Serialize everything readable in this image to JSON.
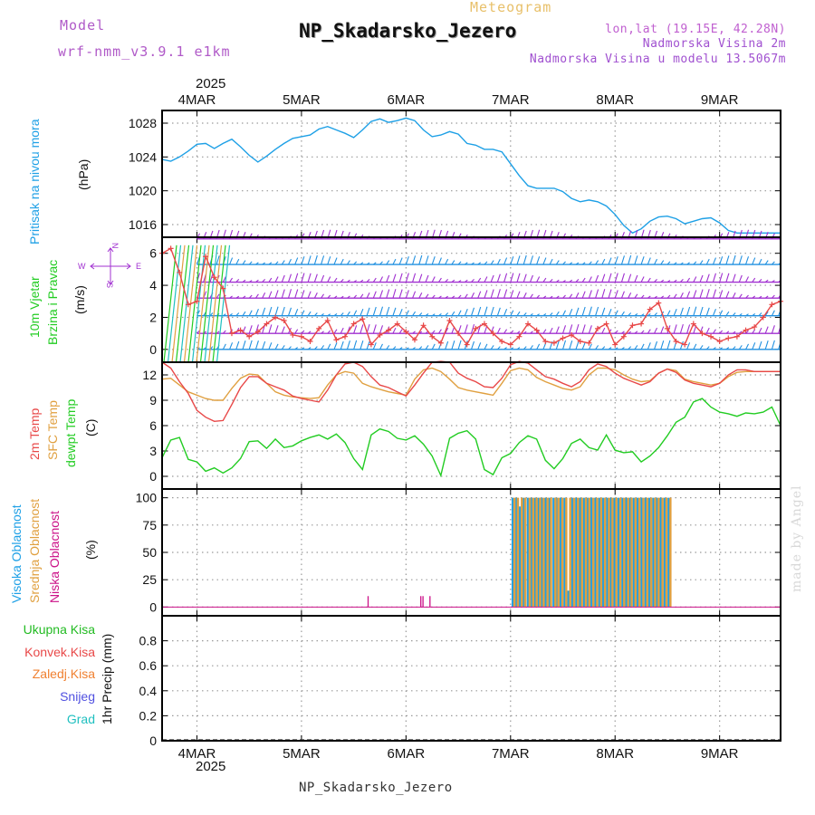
{
  "header": {
    "model_label": "Model",
    "model_name": "wrf-nmm_v3.9.1 e1km",
    "meteogram_label": "Meteogram",
    "location_title": "NP_Skadarsko_Jezero",
    "lonlat": "lon,lat (19.15E, 42.28N)",
    "altitude": "Nadmorska Visina 2m",
    "model_altitude": "Nadmorska Visina u modelu 13.5067m",
    "year_top": "2025"
  },
  "footer": {
    "location": "NP_Skadarsko_Jezero",
    "year_bottom": "2025",
    "credit": "made by Angel"
  },
  "colors": {
    "pressure": "#1ea0e6",
    "temp2m": "#e84848",
    "sfc_temp": "#e0a040",
    "dewpt": "#22cc22",
    "wind_speed": "#e84848",
    "wind_dir": "#111111",
    "high_cloud": "#1ea0e6",
    "mid_cloud": "#e0a040",
    "low_cloud": "#cc1188",
    "total_precip": "#22bb22",
    "convective": "#e84848",
    "frozen": "#f08030",
    "snow": "#5050e0",
    "graupel": "#20c0c0",
    "wind_barb_upper": "#a030d0",
    "wind_barb_lower": "#2090e0"
  },
  "panel_labels": {
    "pressure": {
      "name": "Pritisak na nivou mora",
      "unit": "(hPa)"
    },
    "wind": {
      "name": "10m Vjetar",
      "name2": "Brzina i Pravac",
      "unit": "(m/s)"
    },
    "compass": {
      "n": "N",
      "s": "S",
      "e": "E",
      "w": "W"
    },
    "temp": {
      "t2m": "2m Temp",
      "sfc": "SFC Temp",
      "dew": "dewpt Temp",
      "unit": "(C)"
    },
    "cloud": {
      "high": "Visoka Oblacnost",
      "mid": "Srednja Oblacnost",
      "low": "Niska Oblacnost",
      "unit": "(%)"
    },
    "precip": {
      "total": "Ukupna Kisa",
      "conv": "Konvek.Kisa",
      "frozen": "Zaledj.Kisa",
      "snow": "Snijeg",
      "graupel": "Grad",
      "unit": "1hr Precip (mm)"
    }
  },
  "chart_data": [
    {
      "type": "line",
      "id": "pressure",
      "x_unit": "hours from 2025-03-04 00:00",
      "xlim": [
        -8,
        134
      ],
      "x_tick_labels": [
        "4MAR",
        "5MAR",
        "6MAR",
        "7MAR",
        "8MAR",
        "9MAR"
      ],
      "ylabel": "(hPa)",
      "ylim": [
        1014.5,
        1029.5
      ],
      "yticks": [
        1016,
        1020,
        1024,
        1028
      ],
      "grid": true,
      "series": [
        {
          "name": "Pritisak na nivou mora",
          "x": [
            -8,
            -6,
            -4,
            -2,
            0,
            2,
            4,
            6,
            8,
            10,
            12,
            14,
            16,
            18,
            20,
            22,
            24,
            26,
            28,
            30,
            32,
            34,
            36,
            38,
            40,
            42,
            44,
            46,
            48,
            50,
            52,
            54,
            56,
            58,
            60,
            62,
            64,
            66,
            68,
            70,
            72,
            74,
            76,
            78,
            80,
            82,
            84,
            86,
            88,
            90,
            92,
            94,
            96,
            98,
            100,
            102,
            104,
            106,
            108,
            110,
            112,
            114,
            116,
            118,
            120,
            122,
            124,
            126,
            128,
            130,
            132,
            134
          ],
          "values": [
            1023.7,
            1023.5,
            1024.0,
            1024.7,
            1025.5,
            1025.6,
            1025.0,
            1025.6,
            1026.1,
            1025.2,
            1024.2,
            1023.4,
            1024.1,
            1024.9,
            1025.6,
            1026.2,
            1026.4,
            1026.6,
            1027.3,
            1027.6,
            1027.2,
            1026.8,
            1026.3,
            1027.2,
            1028.2,
            1028.5,
            1028.1,
            1028.3,
            1028.6,
            1028.3,
            1027.2,
            1026.4,
            1026.6,
            1027.0,
            1026.7,
            1025.6,
            1025.4,
            1024.9,
            1024.9,
            1024.6,
            1023.2,
            1021.8,
            1020.6,
            1020.3,
            1020.3,
            1020.3,
            1019.9,
            1019.1,
            1018.7,
            1018.9,
            1018.7,
            1018.2,
            1017.2,
            1015.9,
            1015.0,
            1015.5,
            1016.4,
            1016.9,
            1017.0,
            1016.7,
            1016.1,
            1016.4,
            1016.7,
            1016.8,
            1016.2,
            1015.3,
            1015.0,
            1015.0,
            1015.0,
            1015.0,
            1015.0,
            1015.0
          ]
        }
      ]
    },
    {
      "type": "line",
      "id": "wind",
      "ylabel": "(m/s)",
      "ylim": [
        -0.8,
        7.0
      ],
      "yticks": [
        0,
        2,
        4,
        6
      ],
      "grid": true,
      "series": [
        {
          "name": "10m wind speed",
          "x": [
            -8,
            -6,
            -4,
            -2,
            0,
            2,
            4,
            6,
            8,
            10,
            12,
            14,
            16,
            18,
            20,
            22,
            24,
            26,
            28,
            30,
            32,
            34,
            36,
            38,
            40,
            42,
            44,
            46,
            48,
            50,
            52,
            54,
            56,
            58,
            60,
            62,
            64,
            66,
            68,
            70,
            72,
            74,
            76,
            78,
            80,
            82,
            84,
            86,
            88,
            90,
            92,
            94,
            96,
            98,
            100,
            102,
            104,
            106,
            108,
            110,
            112,
            114,
            116,
            118,
            120,
            122,
            124,
            126,
            128,
            130,
            132,
            134
          ],
          "values": [
            6.0,
            6.3,
            4.8,
            2.8,
            3.0,
            5.8,
            4.5,
            3.8,
            1.0,
            1.2,
            0.8,
            1.1,
            1.6,
            2.0,
            1.8,
            0.9,
            0.8,
            0.5,
            1.3,
            1.8,
            0.6,
            0.8,
            1.6,
            1.9,
            0.3,
            0.9,
            1.2,
            1.6,
            1.1,
            0.6,
            1.5,
            0.8,
            0.4,
            1.8,
            1.0,
            0.3,
            1.3,
            1.6,
            1.0,
            0.5,
            0.3,
            0.8,
            1.6,
            1.2,
            0.5,
            0.4,
            0.7,
            0.9,
            0.5,
            0.4,
            1.3,
            1.6,
            0.3,
            0.8,
            1.5,
            1.6,
            2.5,
            2.9,
            1.3,
            0.5,
            0.3,
            1.6,
            1.0,
            0.8,
            0.5,
            0.7,
            0.8,
            1.2,
            1.4,
            2.0,
            2.8,
            3.0
          ]
        }
      ]
    },
    {
      "type": "line",
      "id": "temperature",
      "ylabel": "(C)",
      "ylim": [
        -1.5,
        13.5
      ],
      "yticks": [
        0,
        3,
        6,
        9,
        12
      ],
      "grid": true,
      "series": [
        {
          "name": "2m Temp",
          "x": [
            -8,
            -6,
            -4,
            -2,
            0,
            2,
            4,
            6,
            8,
            10,
            12,
            14,
            16,
            18,
            20,
            22,
            24,
            26,
            28,
            30,
            32,
            34,
            36,
            38,
            40,
            42,
            44,
            46,
            48,
            50,
            52,
            54,
            56,
            58,
            60,
            62,
            64,
            66,
            68,
            70,
            72,
            74,
            76,
            78,
            80,
            82,
            84,
            86,
            88,
            90,
            92,
            94,
            96,
            98,
            100,
            102,
            104,
            106,
            108,
            110,
            112,
            114,
            116,
            118,
            120,
            122,
            124,
            126,
            128,
            130,
            132,
            134
          ],
          "values": [
            13.5,
            12.8,
            11.2,
            9.8,
            7.8,
            7.0,
            6.5,
            6.6,
            8.5,
            10.5,
            11.8,
            11.8,
            11.0,
            10.6,
            10.2,
            9.5,
            9.2,
            9.0,
            8.8,
            10.2,
            12.0,
            13.3,
            13.5,
            13.0,
            11.8,
            10.8,
            10.5,
            10.0,
            9.5,
            10.8,
            12.2,
            13.5,
            13.6,
            13.5,
            12.2,
            11.6,
            11.2,
            10.6,
            10.5,
            11.6,
            13.2,
            13.6,
            13.4,
            12.6,
            11.8,
            11.5,
            11.0,
            10.6,
            11.2,
            12.6,
            13.3,
            13.0,
            12.2,
            11.6,
            11.2,
            10.8,
            11.2,
            12.2,
            12.7,
            12.3,
            11.4,
            11.0,
            10.8,
            10.6,
            11.0,
            12.0,
            12.6,
            12.6,
            12.4,
            12.4,
            12.4,
            12.4
          ]
        },
        {
          "name": "SFC Temp",
          "x": [
            -8,
            -6,
            -4,
            -2,
            0,
            2,
            4,
            6,
            8,
            10,
            12,
            14,
            16,
            18,
            20,
            22,
            24,
            26,
            28,
            30,
            32,
            34,
            36,
            38,
            40,
            42,
            44,
            46,
            48,
            50,
            52,
            54,
            56,
            58,
            60,
            62,
            64,
            66,
            68,
            70,
            72,
            74,
            76,
            78,
            80,
            82,
            84,
            86,
            88,
            90,
            92,
            94,
            96,
            98,
            100,
            102,
            104,
            106,
            108,
            110,
            112,
            114,
            116,
            118,
            120,
            122,
            124,
            126,
            128,
            130,
            132,
            134
          ],
          "values": [
            11.5,
            11.6,
            10.8,
            10.0,
            9.6,
            9.2,
            9.0,
            9.0,
            10.4,
            11.6,
            12.1,
            12.0,
            11.0,
            10.0,
            9.6,
            9.4,
            9.3,
            9.2,
            9.3,
            10.8,
            12.0,
            12.4,
            12.2,
            11.0,
            10.6,
            10.3,
            10.0,
            9.8,
            9.6,
            11.5,
            12.6,
            12.8,
            12.4,
            11.5,
            10.5,
            10.2,
            10.0,
            9.8,
            9.6,
            11.0,
            12.5,
            12.8,
            12.6,
            11.7,
            11.2,
            10.8,
            10.4,
            10.2,
            10.6,
            12.0,
            12.8,
            12.8,
            12.6,
            12.0,
            11.5,
            11.2,
            11.3,
            12.2,
            12.7,
            12.5,
            11.5,
            11.2,
            11.0,
            10.8,
            11.0,
            11.8,
            12.3,
            12.4,
            12.4,
            12.4,
            12.4,
            12.4
          ]
        },
        {
          "name": "dewpt Temp",
          "x": [
            -8,
            -6,
            -4,
            -2,
            0,
            2,
            4,
            6,
            8,
            10,
            12,
            14,
            16,
            18,
            20,
            22,
            24,
            26,
            28,
            30,
            32,
            34,
            36,
            38,
            40,
            42,
            44,
            46,
            48,
            50,
            52,
            54,
            56,
            58,
            60,
            62,
            64,
            66,
            68,
            70,
            72,
            74,
            76,
            78,
            80,
            82,
            84,
            86,
            88,
            90,
            92,
            94,
            96,
            98,
            100,
            102,
            104,
            106,
            108,
            110,
            112,
            114,
            116,
            118,
            120,
            122,
            124,
            126,
            128,
            130,
            132,
            134
          ],
          "values": [
            2.2,
            4.3,
            4.6,
            2.0,
            1.7,
            0.6,
            1.0,
            0.4,
            1.0,
            2.1,
            4.1,
            4.2,
            3.3,
            4.4,
            3.4,
            3.6,
            4.2,
            4.6,
            4.9,
            4.4,
            5.0,
            4.0,
            2.1,
            0.8,
            4.9,
            5.6,
            5.3,
            4.5,
            4.3,
            4.8,
            3.8,
            2.4,
            0.1,
            4.5,
            5.1,
            5.4,
            4.4,
            0.8,
            0.2,
            2.2,
            2.7,
            4.0,
            4.8,
            4.4,
            1.9,
            0.9,
            2.1,
            3.9,
            4.4,
            3.4,
            3.1,
            4.9,
            3.1,
            2.8,
            2.9,
            1.7,
            2.4,
            3.4,
            4.8,
            6.4,
            7.0,
            8.8,
            9.2,
            8.2,
            7.6,
            7.4,
            7.1,
            7.5,
            7.4,
            7.6,
            8.2,
            6.0
          ]
        }
      ]
    },
    {
      "type": "bar",
      "id": "cloud",
      "ylabel": "(%)",
      "ylim": [
        -8,
        108
      ],
      "yticks": [
        0,
        25,
        50,
        75,
        100
      ],
      "grid": true,
      "series": [
        {
          "name": "Visoka Oblacnost",
          "x": [
            72.5,
            73.3,
            74.1,
            75,
            76,
            76.8,
            77.6,
            78.4,
            79.2,
            80.1,
            80.9,
            81.9,
            82.6,
            83.5,
            84.4,
            85.3,
            86.2,
            87.1,
            88,
            88.9,
            89.7,
            90.6,
            91.5,
            92.4,
            93.3,
            94.2,
            95,
            95.9,
            96.8,
            97.7,
            98.6,
            99.4,
            100.3,
            101.2,
            102.1,
            103,
            103.9,
            104.8,
            105.6,
            106.5,
            107.4,
            108.3
          ],
          "values": [
            100,
            100,
            92,
            100,
            100,
            100,
            100,
            100,
            100,
            100,
            100,
            100,
            100,
            100,
            100,
            15,
            100,
            100,
            100,
            100,
            100,
            100,
            100,
            100,
            100,
            100,
            100,
            100,
            100,
            100,
            100,
            100,
            100,
            100,
            100,
            100,
            100,
            100,
            100,
            100,
            100,
            100
          ]
        },
        {
          "name": "Srednja Oblacnost",
          "x": [
            72.9,
            73.7,
            74.6,
            75.4,
            76.4,
            77.2,
            78,
            78.8,
            79.6,
            80.5,
            81.3,
            82.3,
            83,
            83.9,
            84.8,
            85.7,
            86.6,
            87.5,
            88.4,
            89.3,
            90.1,
            91,
            91.9,
            92.8,
            93.7,
            94.6,
            95.4,
            96.3,
            97.2,
            98.1,
            99,
            99.8,
            100.7,
            101.6,
            102.5,
            103.4,
            104.3,
            105.2,
            106,
            106.9,
            107.8,
            108.7
          ],
          "values": [
            100,
            100,
            100,
            100,
            100,
            100,
            100,
            100,
            100,
            100,
            100,
            100,
            100,
            100,
            100,
            100,
            100,
            100,
            100,
            100,
            100,
            100,
            100,
            100,
            100,
            100,
            100,
            100,
            100,
            100,
            100,
            100,
            100,
            100,
            100,
            100,
            100,
            100,
            100,
            100,
            100,
            100
          ]
        },
        {
          "name": "Niska Oblacnost",
          "x": [
            39.3,
            51.4,
            51.9,
            53.5
          ],
          "values": [
            10,
            10,
            10,
            10
          ]
        }
      ]
    },
    {
      "type": "line",
      "id": "precip",
      "ylabel": "1hr Precip (mm)",
      "ylim": [
        0,
        1
      ],
      "yticks": [
        0,
        0.2,
        0.4,
        0.6,
        0.8
      ],
      "grid": true,
      "series": []
    }
  ]
}
